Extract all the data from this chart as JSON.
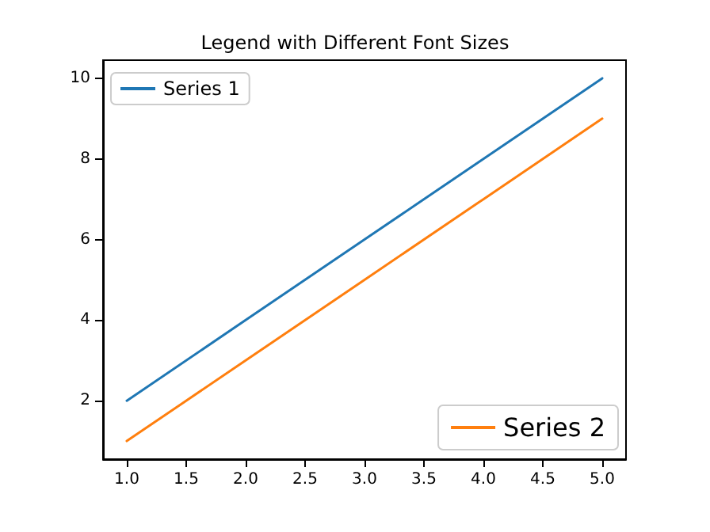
{
  "chart_data": {
    "type": "line",
    "title": "Legend with Different Font Sizes",
    "x": [
      1,
      2,
      3,
      4,
      5
    ],
    "series": [
      {
        "name": "Series 1",
        "color": "#1f77b4",
        "values": [
          2,
          4,
          6,
          8,
          10
        ]
      },
      {
        "name": "Series 2",
        "color": "#ff7f0e",
        "values": [
          1,
          3,
          5,
          7,
          9
        ]
      }
    ],
    "xlim": [
      0.8,
      5.2
    ],
    "ylim": [
      0.55,
      10.45
    ],
    "xticks": [
      {
        "value": 1,
        "label": "1.0"
      },
      {
        "value": 1.5,
        "label": "1.5"
      },
      {
        "value": 2,
        "label": "2.0"
      },
      {
        "value": 2.5,
        "label": "2.5"
      },
      {
        "value": 3,
        "label": "3.0"
      },
      {
        "value": 3.5,
        "label": "3.5"
      },
      {
        "value": 4,
        "label": "4.0"
      },
      {
        "value": 4.5,
        "label": "4.5"
      },
      {
        "value": 5,
        "label": "5.0"
      }
    ],
    "yticks": [
      2,
      4,
      6,
      8,
      10
    ],
    "grid": false,
    "legend": "top left",
    "marker": "none",
    "line_style": "solid"
  }
}
